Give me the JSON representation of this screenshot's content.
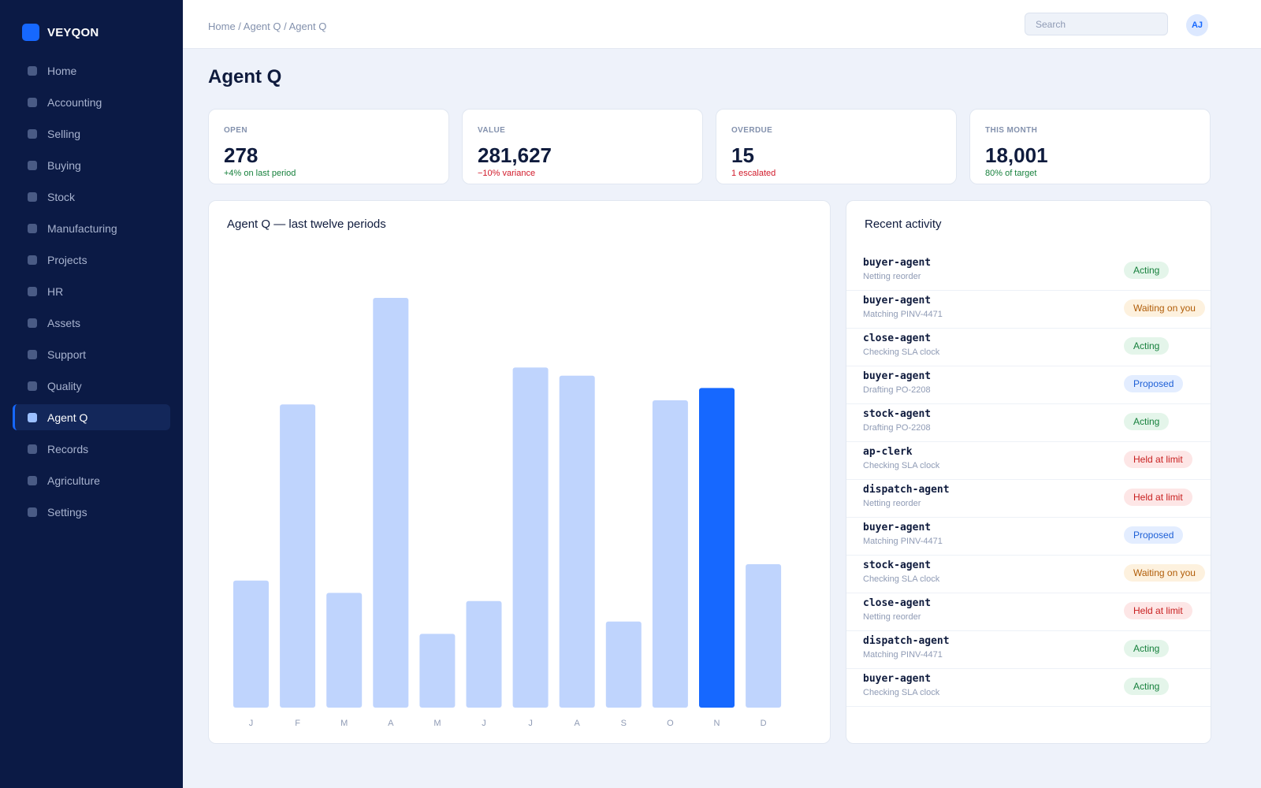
{
  "app": {
    "brand": "VEYQON"
  },
  "sidebar": {
    "items": [
      {
        "label": "Home",
        "active": false
      },
      {
        "label": "Accounting",
        "active": false
      },
      {
        "label": "Selling",
        "active": false
      },
      {
        "label": "Buying",
        "active": false
      },
      {
        "label": "Stock",
        "active": false
      },
      {
        "label": "Manufacturing",
        "active": false
      },
      {
        "label": "Projects",
        "active": false
      },
      {
        "label": "HR",
        "active": false
      },
      {
        "label": "Assets",
        "active": false
      },
      {
        "label": "Support",
        "active": false
      },
      {
        "label": "Quality",
        "active": false
      },
      {
        "label": "Agent Q",
        "active": true
      },
      {
        "label": "Records",
        "active": false
      },
      {
        "label": "Agriculture",
        "active": false
      },
      {
        "label": "Settings",
        "active": false
      }
    ]
  },
  "header": {
    "breadcrumb": "Home / Agent Q / Agent Q",
    "search_placeholder": "Search",
    "avatar_initials": "AJ"
  },
  "page": {
    "title": "Agent Q"
  },
  "kpis": [
    {
      "label": "OPEN",
      "value": "278",
      "delta": "+4% on last period",
      "trend": "pos"
    },
    {
      "label": "VALUE",
      "value": "281,627",
      "delta": "−10% variance",
      "trend": "neg"
    },
    {
      "label": "OVERDUE",
      "value": "15",
      "delta": "1 escalated",
      "trend": "neg"
    },
    {
      "label": "THIS MONTH",
      "value": "18,001",
      "delta": "80% of target",
      "trend": "pos"
    }
  ],
  "chart_data": {
    "type": "bar",
    "title": "Agent Q — last twelve periods",
    "xlabel": "",
    "ylabel": "",
    "categories": [
      "J",
      "F",
      "M",
      "A",
      "M",
      "J",
      "J",
      "A",
      "S",
      "O",
      "N",
      "D"
    ],
    "values": [
      31,
      74,
      28,
      100,
      18,
      26,
      83,
      81,
      21,
      75,
      78,
      35
    ],
    "highlight_index": 10,
    "ylim": [
      0,
      100
    ],
    "grid": false,
    "colors": {
      "bar": "#bfd4fd",
      "highlight": "#1668ff"
    }
  },
  "activity": {
    "title": "Recent activity",
    "items": [
      {
        "agent": "buyer-agent",
        "task": "Netting reorder",
        "status": "Acting",
        "kind": "acting"
      },
      {
        "agent": "buyer-agent",
        "task": "Matching PINV-4471",
        "status": "Waiting on you",
        "kind": "waiting"
      },
      {
        "agent": "close-agent",
        "task": "Checking SLA clock",
        "status": "Acting",
        "kind": "acting"
      },
      {
        "agent": "buyer-agent",
        "task": "Drafting PO-2208",
        "status": "Proposed",
        "kind": "proposed"
      },
      {
        "agent": "stock-agent",
        "task": "Drafting PO-2208",
        "status": "Acting",
        "kind": "acting"
      },
      {
        "agent": "ap-clerk",
        "task": "Checking SLA clock",
        "status": "Held at limit",
        "kind": "held"
      },
      {
        "agent": "dispatch-agent",
        "task": "Netting reorder",
        "status": "Held at limit",
        "kind": "held"
      },
      {
        "agent": "buyer-agent",
        "task": "Matching PINV-4471",
        "status": "Proposed",
        "kind": "proposed"
      },
      {
        "agent": "stock-agent",
        "task": "Checking SLA clock",
        "status": "Waiting on you",
        "kind": "waiting"
      },
      {
        "agent": "close-agent",
        "task": "Netting reorder",
        "status": "Held at limit",
        "kind": "held"
      },
      {
        "agent": "dispatch-agent",
        "task": "Matching PINV-4471",
        "status": "Acting",
        "kind": "acting"
      },
      {
        "agent": "buyer-agent",
        "task": "Checking SLA clock",
        "status": "Acting",
        "kind": "acting"
      }
    ]
  }
}
